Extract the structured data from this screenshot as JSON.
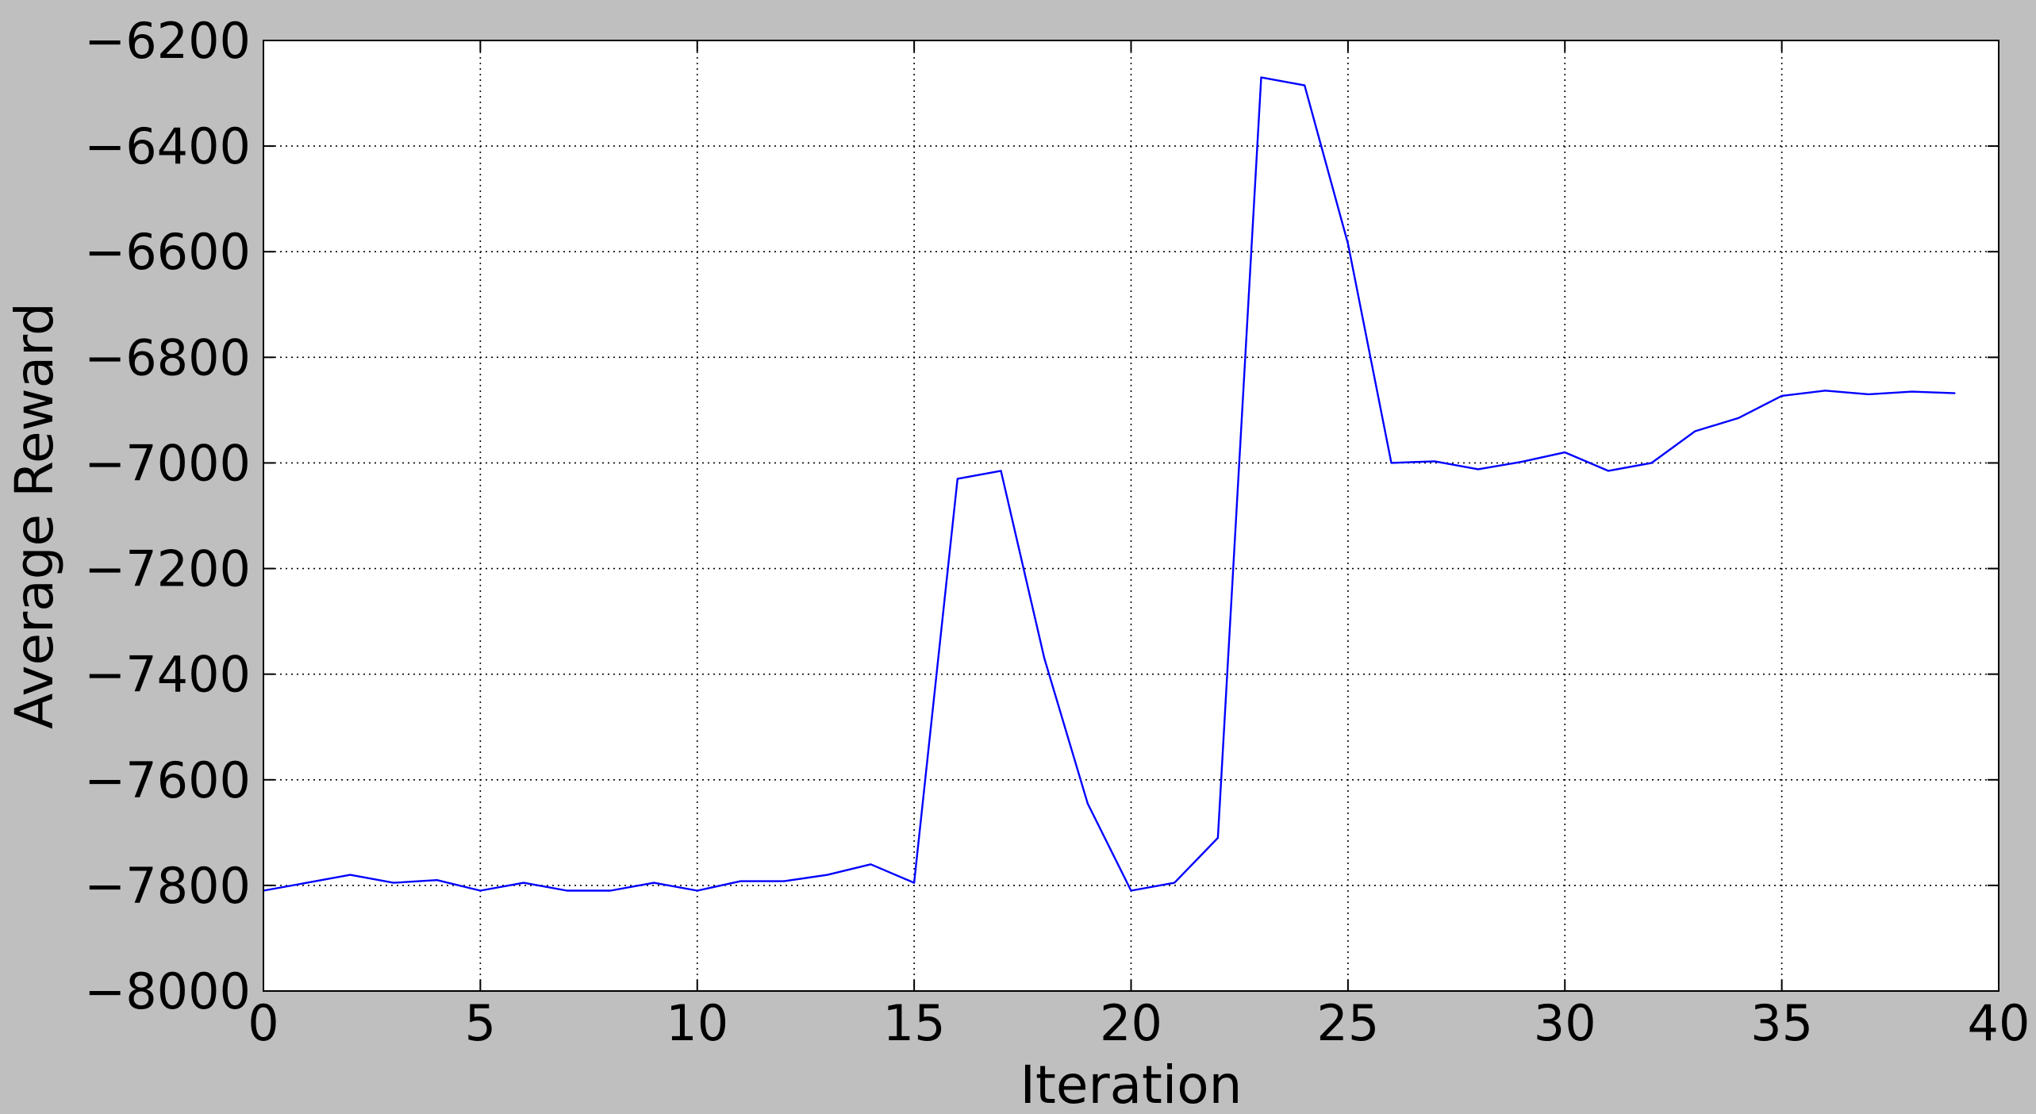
{
  "chart_data": {
    "type": "line",
    "title": "",
    "xlabel": "Iteration",
    "ylabel": "Average Reward",
    "xlim": [
      0,
      40
    ],
    "ylim": [
      -8000,
      -6200
    ],
    "xticks": [
      0,
      5,
      10,
      15,
      20,
      25,
      30,
      35,
      40
    ],
    "yticks": [
      -6200,
      -6400,
      -6600,
      -6800,
      -7000,
      -7200,
      -7400,
      -7600,
      -7800,
      -8000
    ],
    "xtick_labels": [
      "0",
      "5",
      "10",
      "15",
      "20",
      "25",
      "30",
      "35",
      "40"
    ],
    "ytick_labels": [
      "−6200",
      "−6400",
      "−6600",
      "−6800",
      "−7000",
      "−7200",
      "−7400",
      "−7600",
      "−7800",
      "−8000"
    ],
    "grid": true,
    "series": [
      {
        "name": "average-reward",
        "color": "#0000ff",
        "x": [
          0,
          1,
          2,
          3,
          4,
          5,
          6,
          7,
          8,
          9,
          10,
          11,
          12,
          13,
          14,
          15,
          16,
          17,
          18,
          19,
          20,
          21,
          22,
          23,
          24,
          25,
          26,
          27,
          28,
          29,
          30,
          31,
          32,
          33,
          34,
          35,
          36,
          37,
          38,
          39
        ],
        "y": [
          -7810,
          -7795,
          -7780,
          -7795,
          -7790,
          -7810,
          -7795,
          -7810,
          -7810,
          -7795,
          -7810,
          -7792,
          -7792,
          -7780,
          -7760,
          -7795,
          -7030,
          -7015,
          -7370,
          -7645,
          -7810,
          -7795,
          -7710,
          -6270,
          -6285,
          -6585,
          -7000,
          -6997,
          -7012,
          -6998,
          -6980,
          -7015,
          -7000,
          -6940,
          -6915,
          -6873,
          -6863,
          -6870,
          -6865,
          -6868
        ]
      }
    ]
  }
}
